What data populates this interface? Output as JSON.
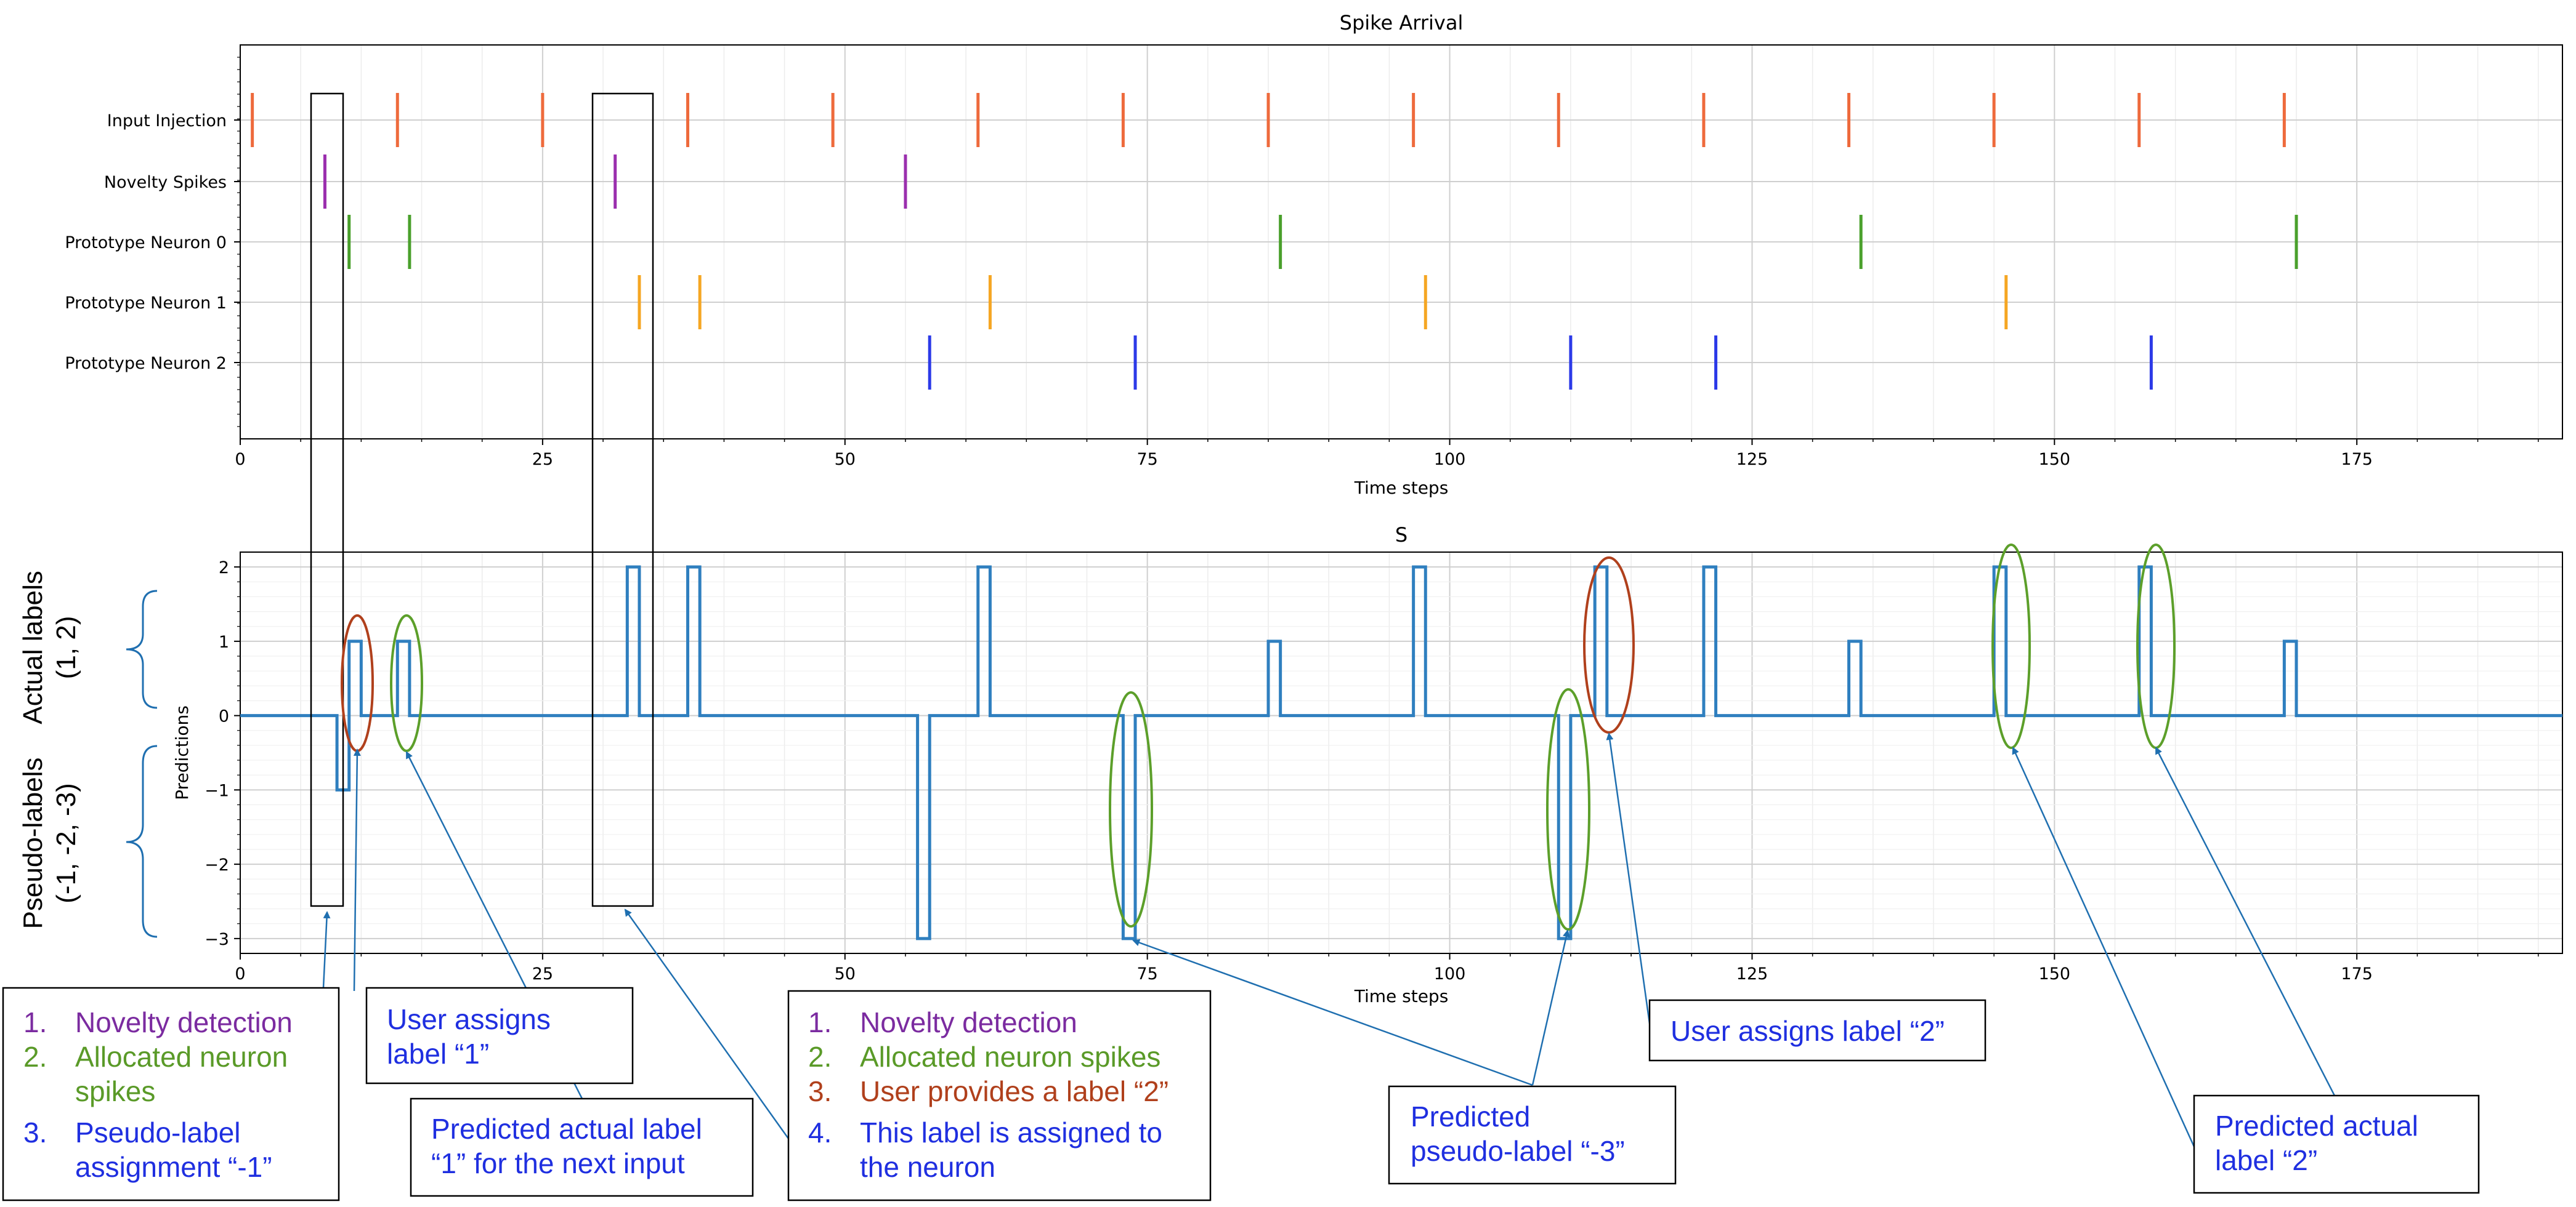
{
  "colors": {
    "input": "#ee6a3c",
    "novelty": "#9b2fae",
    "proto0": "#4aa02c",
    "proto1": "#f5a623",
    "proto2": "#2c3ae8",
    "line": "#2f7fbf",
    "green_ring": "#5c9f2a",
    "red_ring": "#b0401c",
    "blue_text": "#1f2fe0",
    "purple_text": "#7b2ba0",
    "green_text": "#5a9a28",
    "red_text": "#b0401c",
    "arrow": "#1f6fb0"
  },
  "chart_data": [
    {
      "type": "scatter",
      "title": "Spike Arrival",
      "xlabel": "Time steps",
      "ylabel": "",
      "xlim": [
        0,
        192
      ],
      "xticks": [
        0,
        25,
        50,
        75,
        100,
        125,
        150,
        175
      ],
      "grid": true,
      "rows": [
        {
          "name": "Input Injection",
          "x": [
            1,
            13,
            25,
            37,
            49,
            61,
            73,
            85,
            97,
            109,
            121,
            133,
            145,
            157,
            169
          ]
        },
        {
          "name": "Novelty Spikes",
          "x": [
            7,
            31,
            55
          ]
        },
        {
          "name": "Prototype Neuron 0",
          "x": [
            9,
            14,
            86,
            134,
            170
          ]
        },
        {
          "name": "Prototype Neuron 1",
          "x": [
            33,
            38,
            62,
            98,
            146
          ]
        },
        {
          "name": "Prototype Neuron 2",
          "x": [
            57,
            74,
            110,
            122,
            158
          ]
        }
      ]
    },
    {
      "type": "line",
      "title": "S",
      "xlabel": "Time steps",
      "ylabel": "Predictions",
      "xlim": [
        0,
        192
      ],
      "ylim": [
        -3.2,
        2.2
      ],
      "xticks": [
        0,
        25,
        50,
        75,
        100,
        125,
        150,
        175
      ],
      "yticks": [
        2,
        1,
        0,
        -1,
        -2,
        -3
      ],
      "grid": true,
      "pulses": [
        {
          "start": 8,
          "end": 9,
          "value": -1
        },
        {
          "start": 9,
          "end": 10,
          "value": 1
        },
        {
          "start": 13,
          "end": 14,
          "value": 1
        },
        {
          "start": 32,
          "end": 33,
          "value": 2
        },
        {
          "start": 37,
          "end": 38,
          "value": 2
        },
        {
          "start": 56,
          "end": 57,
          "value": -3
        },
        {
          "start": 61,
          "end": 62,
          "value": 2
        },
        {
          "start": 73,
          "end": 74,
          "value": -3
        },
        {
          "start": 85,
          "end": 86,
          "value": 1
        },
        {
          "start": 97,
          "end": 98,
          "value": 2
        },
        {
          "start": 109,
          "end": 110,
          "value": -3
        },
        {
          "start": 112,
          "end": 113,
          "value": 2
        },
        {
          "start": 121,
          "end": 122,
          "value": 2
        },
        {
          "start": 133,
          "end": 134,
          "value": 1
        },
        {
          "start": 145,
          "end": 146,
          "value": 2
        },
        {
          "start": 157,
          "end": 158,
          "value": 2
        },
        {
          "start": 169,
          "end": 170,
          "value": 1
        }
      ]
    }
  ],
  "side_labels": {
    "actual_line1": "Actual labels",
    "actual_line2": "(1, 2)",
    "pseudo_line1": "Pseudo-labels",
    "pseudo_line2": "(-1, -2, -3)"
  },
  "annotations": {
    "box1": {
      "l1": "Novelty detection",
      "l2a": "Allocated neuron",
      "l2b": "spikes",
      "l3a": "Pseudo-label",
      "l3b": "assignment “-1”"
    },
    "box2": {
      "a": "User assigns",
      "b": "label “1”"
    },
    "box3": {
      "a": "Predicted actual label",
      "b": "“1” for the next input"
    },
    "box4": {
      "l1": "Novelty detection",
      "l2": "Allocated neuron spikes",
      "l3": "User provides a label “2”",
      "l4a": "This label  is assigned to",
      "l4b": "the neuron"
    },
    "box5": {
      "a": "Predicted",
      "b": "pseudo-label “-3”"
    },
    "box6": {
      "a": "User assigns label “2”"
    },
    "box7": {
      "a": "Predicted actual",
      "b": "label “2”"
    }
  }
}
